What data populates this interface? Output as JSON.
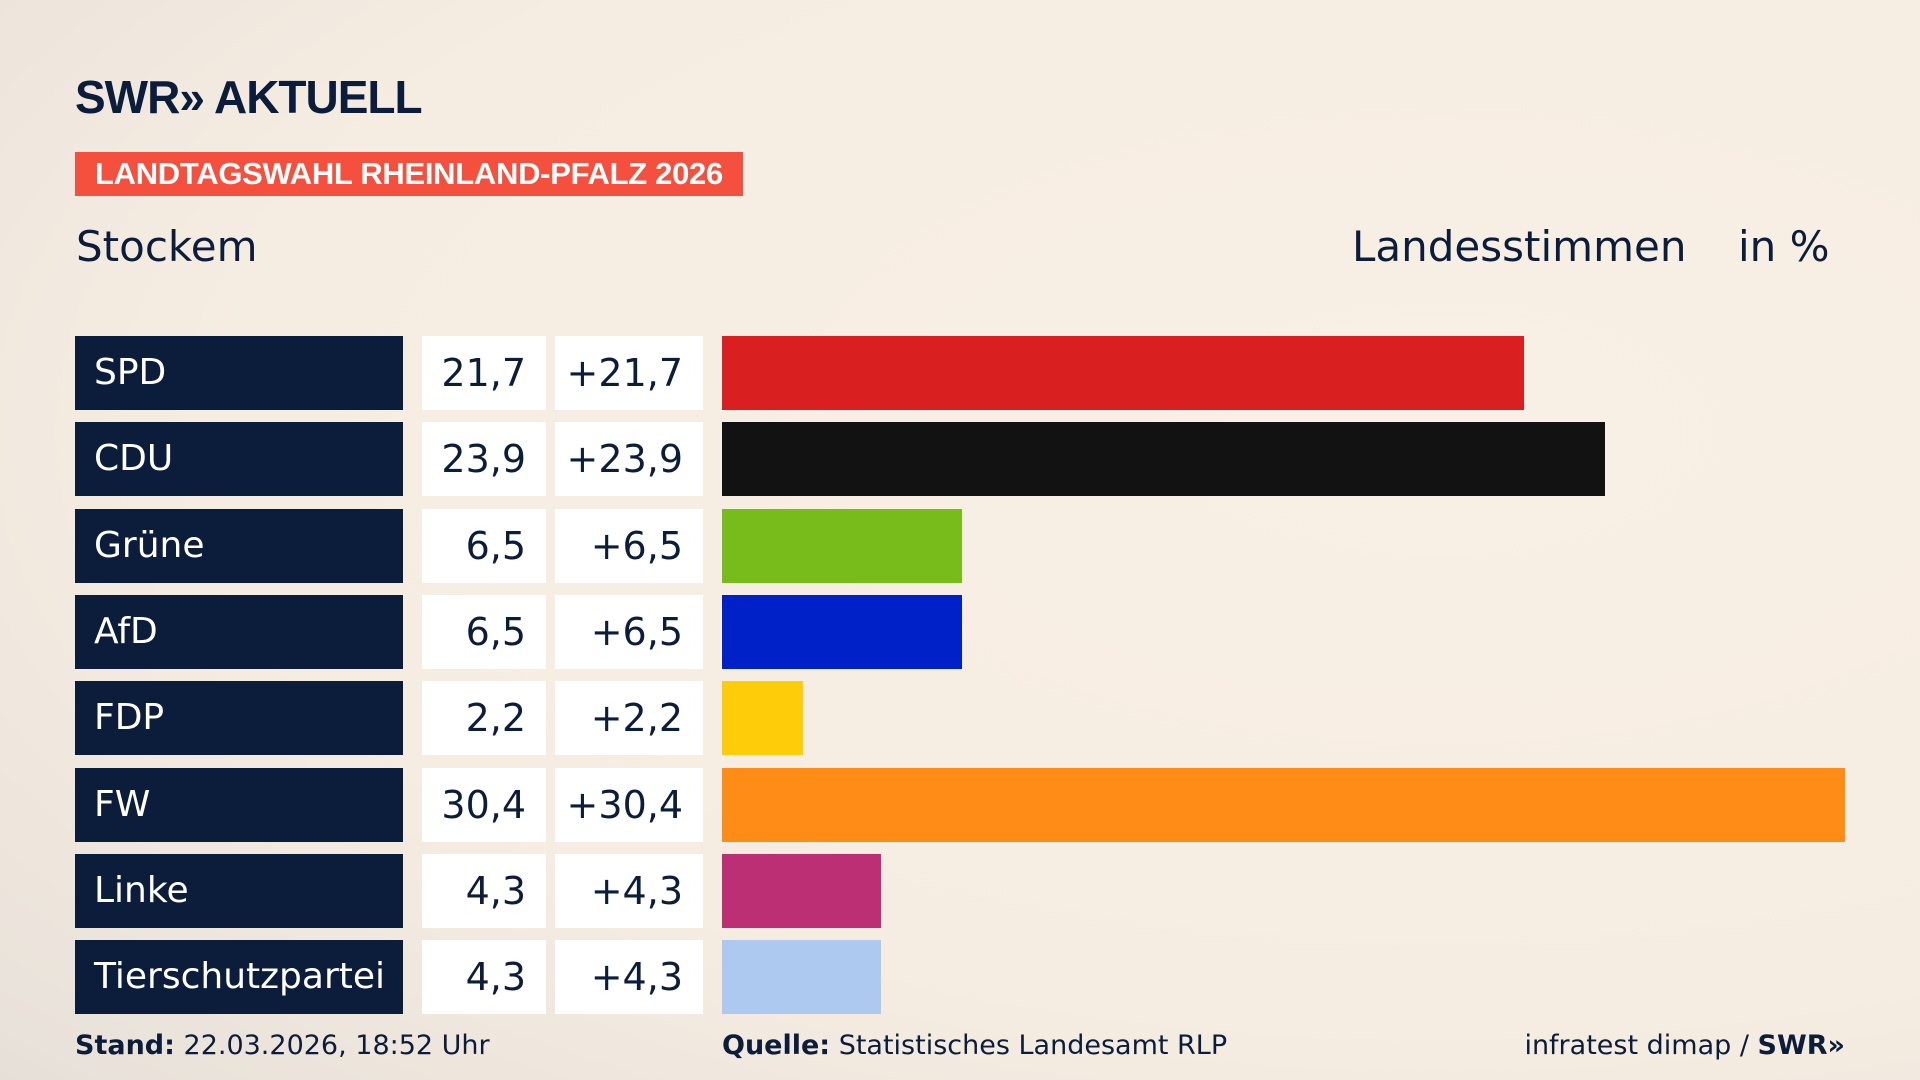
{
  "logo": "SWR» AKTUELL",
  "banner": "LANDTAGSWAHL RHEINLAND-PFALZ 2026",
  "place": "Stockem",
  "measure": "Landesstimmen",
  "unit": "in %",
  "chart_data": {
    "type": "bar",
    "categories": [
      "SPD",
      "CDU",
      "Grüne",
      "AfD",
      "FDP",
      "FW",
      "Linke",
      "Tierschutzpartei"
    ],
    "values": [
      21.7,
      23.9,
      6.5,
      6.5,
      2.2,
      30.4,
      4.3,
      4.3
    ],
    "value_labels": [
      "21,7",
      "23,9",
      "6,5",
      "6,5",
      "2,2",
      "30,4",
      "4,3",
      "4,3"
    ],
    "diff_labels": [
      "+21,7",
      "+23,9",
      "+6,5",
      "+6,5",
      "+2,2",
      "+30,4",
      "+4,3",
      "+4,3"
    ],
    "colors": [
      "#d91f20",
      "#121212",
      "#78bc1b",
      "#0021c8",
      "#ffcc0a",
      "#ff8c17",
      "#bc2f74",
      "#aec9ef"
    ],
    "orientation": "horizontal"
  },
  "footer": {
    "stand_label": "Stand:",
    "stand_value": "22.03.2026, 18:52 Uhr",
    "source_label": "Quelle:",
    "source_value": "Statistisches Landesamt RLP",
    "credit": "infratest dimap / ",
    "credit_brand": "SWR»"
  }
}
